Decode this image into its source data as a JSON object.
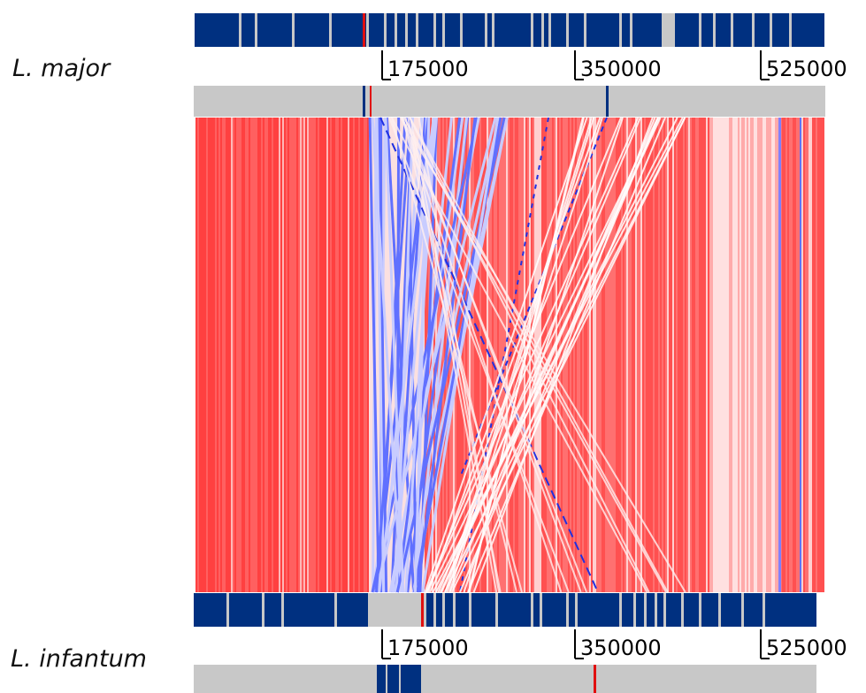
{
  "genomes": {
    "top": {
      "name": "L. major",
      "ticks": [
        "175000",
        "350000",
        "525000"
      ]
    },
    "bottom": {
      "name": "L. infantum",
      "ticks": [
        "175000",
        "350000",
        "525000"
      ]
    }
  },
  "colors": {
    "feature": "#003080",
    "track": "#c8c8c8",
    "forward_match": "#ff3030",
    "reverse_match": "#2030e0",
    "marker": "#e01010"
  }
}
